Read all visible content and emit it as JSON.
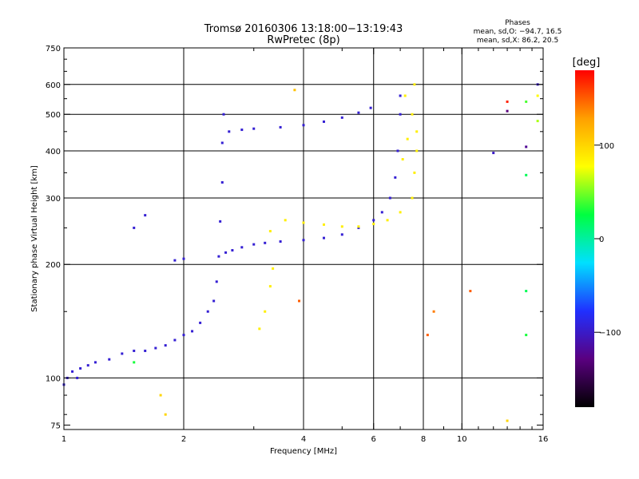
{
  "chart_data": {
    "type": "scatter",
    "title": "Tromsø 20160306 13:18:00−13:19:43",
    "subtitle": "RwPretec (8p)",
    "xlabel": "Frequency [MHz]",
    "ylabel": "Stationary phase Virtual Height [km]",
    "x_scale": "log",
    "y_scale": "log",
    "xlim": [
      1,
      16
    ],
    "ylim": [
      73,
      750
    ],
    "x_ticks": [
      1,
      2,
      4,
      6,
      8,
      10,
      16
    ],
    "x_minor_ticks": [
      3,
      5,
      7,
      9,
      11,
      12,
      13,
      14,
      15
    ],
    "y_ticks": [
      75,
      100,
      200,
      300,
      400,
      500,
      600,
      750
    ],
    "y_minor_ticks": [
      80,
      90,
      150,
      250,
      350,
      450,
      550,
      650,
      700
    ],
    "x_grid": [
      2,
      4,
      6,
      8,
      10
    ],
    "y_grid": [
      100,
      200,
      300,
      400,
      500,
      600
    ],
    "grid": true,
    "stats": {
      "heading": "Phases",
      "line_o": "mean, sd,O: −94.7, 16.5",
      "line_x": "mean, sd,X:  86.2, 20.5"
    },
    "colorbar": {
      "label": "[deg]",
      "ticks": [
        {
          "value": 100,
          "label": "100"
        },
        {
          "value": 0,
          "label": "0"
        },
        {
          "value": -100,
          "label": "−100"
        }
      ],
      "range": [
        -180,
        180
      ],
      "colors": [
        "#000000",
        "#5a0080",
        "#2030ff",
        "#00e0ff",
        "#00ff40",
        "#ffff00",
        "#ffa000",
        "#ff0000"
      ]
    },
    "series": [
      {
        "mode": "O",
        "phase": -95,
        "points": [
          [
            1.0,
            96
          ],
          [
            1.02,
            100
          ],
          [
            1.05,
            104
          ],
          [
            1.08,
            100
          ],
          [
            1.1,
            106
          ],
          [
            1.15,
            108
          ],
          [
            1.2,
            110
          ],
          [
            1.3,
            112
          ],
          [
            1.4,
            116
          ],
          [
            1.5,
            118
          ],
          [
            1.6,
            118
          ],
          [
            1.7,
            120
          ],
          [
            1.8,
            122
          ],
          [
            1.9,
            126
          ],
          [
            2.0,
            130
          ],
          [
            2.1,
            133
          ],
          [
            2.2,
            140
          ],
          [
            2.3,
            150
          ],
          [
            2.38,
            160
          ],
          [
            2.42,
            180
          ],
          [
            2.45,
            210
          ],
          [
            2.47,
            260
          ],
          [
            2.5,
            330
          ],
          [
            2.5,
            420
          ],
          [
            2.52,
            500
          ],
          [
            2.55,
            215
          ],
          [
            2.65,
            218
          ],
          [
            2.8,
            222
          ],
          [
            3.0,
            226
          ],
          [
            3.2,
            228
          ],
          [
            3.5,
            230
          ],
          [
            4.0,
            232
          ],
          [
            4.5,
            235
          ],
          [
            5.0,
            240
          ],
          [
            5.5,
            250
          ],
          [
            6.0,
            262
          ],
          [
            6.3,
            275
          ],
          [
            6.6,
            300
          ],
          [
            6.8,
            340
          ],
          [
            6.9,
            400
          ],
          [
            7.0,
            500
          ],
          [
            7.0,
            560
          ],
          [
            2.6,
            450
          ],
          [
            2.8,
            455
          ],
          [
            3.0,
            458
          ],
          [
            3.5,
            462
          ],
          [
            4.0,
            468
          ],
          [
            4.5,
            478
          ],
          [
            5.0,
            490
          ],
          [
            5.5,
            505
          ],
          [
            5.9,
            520
          ],
          [
            1.9,
            205
          ],
          [
            2.0,
            207
          ],
          [
            1.5,
            250
          ],
          [
            1.6,
            270
          ]
        ]
      },
      {
        "mode": "X",
        "phase": 86,
        "points": [
          [
            3.1,
            135
          ],
          [
            3.2,
            150
          ],
          [
            3.3,
            175
          ],
          [
            3.35,
            195
          ],
          [
            3.3,
            245
          ],
          [
            3.6,
            262
          ],
          [
            4.0,
            258
          ],
          [
            4.5,
            255
          ],
          [
            5.0,
            252
          ],
          [
            5.5,
            252
          ],
          [
            6.0,
            256
          ],
          [
            6.5,
            262
          ],
          [
            7.0,
            275
          ],
          [
            7.5,
            300
          ],
          [
            7.6,
            350
          ],
          [
            7.7,
            400
          ],
          [
            7.7,
            450
          ],
          [
            7.5,
            500
          ],
          [
            7.2,
            560
          ],
          [
            7.6,
            600
          ],
          [
            7.3,
            430
          ],
          [
            7.1,
            380
          ]
        ]
      },
      {
        "mode": "scattered",
        "points": [
          [
            1.5,
            110,
            30
          ],
          [
            1.75,
            90,
            100
          ],
          [
            1.8,
            80,
            100
          ],
          [
            3.8,
            580,
            110
          ],
          [
            3.9,
            160,
            150
          ],
          [
            8.2,
            130,
            150
          ],
          [
            10.5,
            170,
            150
          ],
          [
            13.0,
            77,
            100
          ],
          [
            13.0,
            540,
            170
          ],
          [
            14.5,
            540,
            40
          ],
          [
            14.5,
            345,
            20
          ],
          [
            14.5,
            170,
            20
          ],
          [
            14.5,
            130,
            30
          ],
          [
            14.5,
            410,
            -120
          ],
          [
            15.5,
            600,
            -100
          ],
          [
            15.5,
            560,
            80
          ],
          [
            15.5,
            480,
            60
          ],
          [
            12.0,
            395,
            -100
          ],
          [
            13.0,
            510,
            -130
          ],
          [
            8.5,
            150,
            140
          ]
        ]
      }
    ]
  }
}
